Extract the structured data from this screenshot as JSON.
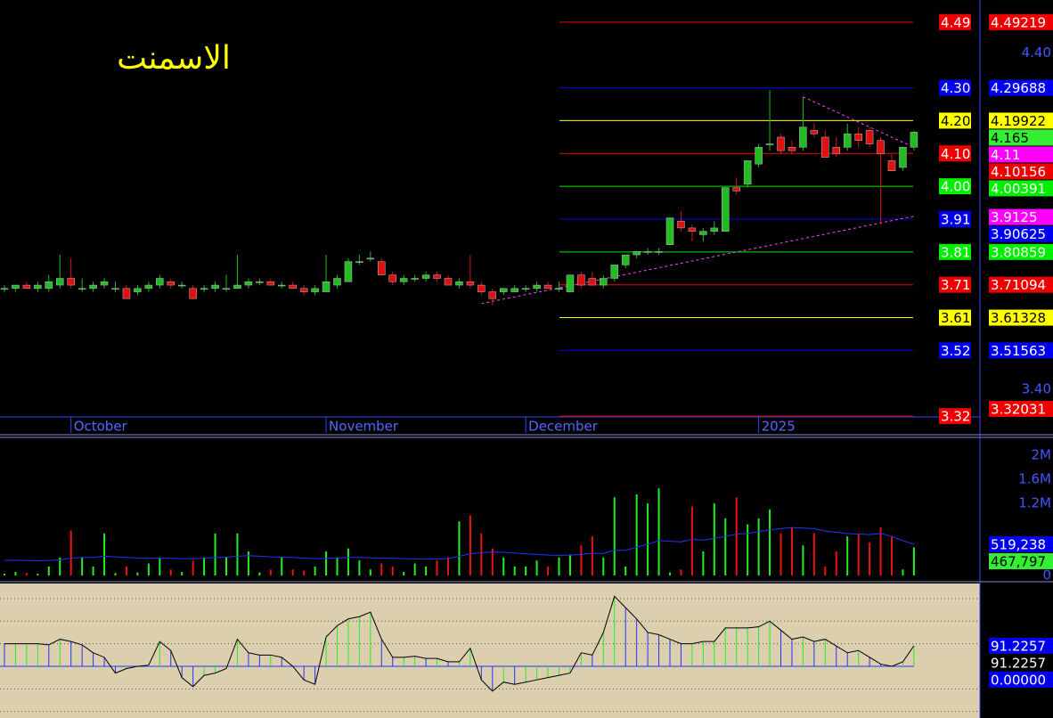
{
  "chart_data": [
    {
      "type": "candlestick",
      "title": "الاسمنت",
      "title_color": "#ffff00",
      "categories": [
        null,
        null,
        null,
        null,
        null,
        null,
        "October",
        null,
        null,
        null,
        null,
        null,
        null,
        null,
        null,
        null,
        null,
        null,
        null,
        null,
        null,
        null,
        null,
        null,
        null,
        null,
        null,
        null,
        null,
        "November",
        null,
        null,
        null,
        null,
        null,
        null,
        null,
        null,
        null,
        null,
        null,
        null,
        null,
        null,
        null,
        null,
        null,
        "December",
        null,
        null,
        null,
        null,
        null,
        null,
        null,
        null,
        null,
        null,
        null,
        null,
        null,
        null,
        null,
        null,
        null,
        null,
        null,
        null,
        "2025",
        null,
        null,
        null,
        null,
        null,
        null,
        null,
        null,
        null,
        null,
        null,
        null,
        null,
        null
      ],
      "open": [
        3.7,
        3.7,
        3.71,
        3.7,
        3.7,
        3.71,
        3.73,
        3.7,
        3.7,
        3.71,
        3.7,
        3.7,
        3.69,
        3.7,
        3.71,
        3.72,
        3.71,
        3.7,
        3.7,
        3.7,
        3.7,
        3.7,
        3.71,
        3.72,
        3.72,
        3.71,
        3.71,
        3.7,
        3.69,
        3.69,
        3.71,
        3.72,
        3.78,
        3.79,
        3.78,
        3.74,
        3.72,
        3.73,
        3.73,
        3.74,
        3.73,
        3.71,
        3.72,
        3.71,
        3.69,
        3.69,
        3.69,
        3.7,
        3.7,
        3.71,
        3.7,
        3.69,
        3.74,
        3.73,
        3.71,
        3.73,
        3.77,
        3.8,
        3.81,
        3.81,
        3.83,
        3.9,
        3.88,
        3.86,
        3.87,
        3.87,
        4.0,
        4.01,
        4.07,
        4.13,
        4.15,
        4.12,
        4.12,
        4.17,
        4.15,
        4.12,
        4.12,
        4.16,
        4.17,
        4.14,
        4.08,
        4.06,
        4.12
      ],
      "high": [
        3.71,
        3.71,
        3.72,
        3.72,
        3.74,
        3.8,
        3.79,
        3.73,
        3.72,
        3.73,
        3.72,
        3.71,
        3.71,
        3.72,
        3.74,
        3.73,
        3.72,
        3.71,
        3.71,
        3.72,
        3.74,
        3.8,
        3.73,
        3.73,
        3.73,
        3.72,
        3.72,
        3.71,
        3.71,
        3.8,
        3.74,
        3.79,
        3.8,
        3.81,
        3.79,
        3.75,
        3.74,
        3.74,
        3.75,
        3.75,
        3.74,
        3.73,
        3.8,
        3.72,
        3.7,
        3.7,
        3.71,
        3.71,
        3.72,
        3.72,
        3.72,
        3.74,
        3.75,
        3.75,
        3.74,
        3.77,
        3.8,
        3.81,
        3.82,
        3.82,
        3.91,
        3.93,
        3.89,
        3.88,
        3.9,
        4.0,
        4.03,
        4.08,
        4.13,
        4.29,
        4.16,
        4.14,
        4.27,
        4.19,
        4.17,
        4.15,
        4.19,
        4.18,
        4.18,
        4.15,
        4.1,
        4.12,
        4.17
      ],
      "low": [
        3.69,
        3.69,
        3.7,
        3.69,
        3.69,
        3.7,
        3.7,
        3.69,
        3.69,
        3.7,
        3.69,
        3.67,
        3.68,
        3.69,
        3.7,
        3.7,
        3.7,
        3.67,
        3.69,
        3.69,
        3.69,
        3.7,
        3.7,
        3.71,
        3.71,
        3.7,
        3.7,
        3.68,
        3.68,
        3.69,
        3.7,
        3.72,
        3.77,
        3.78,
        3.74,
        3.71,
        3.71,
        3.72,
        3.72,
        3.72,
        3.71,
        3.7,
        3.7,
        3.68,
        3.65,
        3.68,
        3.69,
        3.69,
        3.69,
        3.7,
        3.69,
        3.69,
        3.7,
        3.71,
        3.7,
        3.72,
        3.76,
        3.79,
        3.8,
        3.8,
        3.83,
        3.87,
        3.84,
        3.84,
        3.86,
        3.87,
        3.98,
        4.0,
        4.06,
        4.11,
        4.1,
        4.1,
        4.11,
        4.15,
        4.09,
        4.09,
        4.11,
        4.12,
        4.12,
        3.89,
        4.05,
        4.05,
        4.11
      ],
      "close": [
        3.7,
        3.71,
        3.7,
        3.71,
        3.72,
        3.73,
        3.71,
        3.7,
        3.71,
        3.72,
        3.7,
        3.67,
        3.7,
        3.71,
        3.73,
        3.71,
        3.71,
        3.67,
        3.7,
        3.71,
        3.7,
        3.71,
        3.72,
        3.72,
        3.71,
        3.71,
        3.7,
        3.69,
        3.7,
        3.72,
        3.73,
        3.78,
        3.78,
        3.79,
        3.74,
        3.72,
        3.73,
        3.73,
        3.74,
        3.73,
        3.71,
        3.72,
        3.71,
        3.69,
        3.67,
        3.7,
        3.7,
        3.7,
        3.71,
        3.7,
        3.7,
        3.74,
        3.71,
        3.71,
        3.73,
        3.77,
        3.8,
        3.81,
        3.81,
        3.81,
        3.91,
        3.88,
        3.87,
        3.87,
        3.88,
        4.0,
        3.99,
        4.08,
        4.12,
        4.13,
        4.11,
        4.11,
        4.18,
        4.16,
        4.09,
        4.1,
        4.16,
        4.14,
        4.13,
        4.1,
        4.05,
        4.12,
        4.165
      ],
      "up_color": "#22bb22",
      "down_color": "#dd1111",
      "ylim": [
        3.318,
        4.558
      ],
      "yticks": [
        {
          "value": 4.4,
          "label": "4.40"
        },
        {
          "value": 3.4,
          "label": "3.40"
        }
      ],
      "levels": [
        {
          "value": 4.49219,
          "label": "4.49",
          "color": "#ee0000"
        },
        {
          "value": 4.29688,
          "label": "4.30",
          "color": "#0000ee"
        },
        {
          "value": 4.19922,
          "label": "4.20",
          "color": "#ffff00"
        },
        {
          "value": 4.10156,
          "label": "4.10",
          "color": "#ee0000"
        },
        {
          "value": 4.00391,
          "label": "4.00",
          "color": "#00ee00"
        },
        {
          "value": 3.90625,
          "label": "3.91",
          "color": "#0000ee"
        },
        {
          "value": 3.80859,
          "label": "3.81",
          "color": "#00ee00"
        },
        {
          "value": 3.71094,
          "label": "3.71",
          "color": "#ee0000"
        },
        {
          "value": 3.61328,
          "label": "3.61",
          "color": "#ffff00"
        },
        {
          "value": 3.51563,
          "label": "3.52",
          "color": "#0000ee"
        },
        {
          "value": 3.32031,
          "label": "3.32",
          "color": "#ee0000"
        }
      ],
      "markers": [
        {
          "value": 4.165,
          "color": "#33ee33"
        },
        {
          "value": 4.11,
          "color": "#ff00ff"
        },
        {
          "value": 3.9125,
          "color": "#ff00ff"
        }
      ],
      "trendlines": [
        {
          "from": [
            43,
            3.655
          ],
          "to": [
            82,
            3.915
          ]
        },
        {
          "from": [
            72,
            4.27
          ],
          "to": [
            82,
            4.12
          ]
        }
      ],
      "trend_color": "#ff44ff"
    },
    {
      "type": "bar",
      "values": [
        30000,
        60000,
        40000,
        30000,
        150000,
        300000,
        750000,
        300000,
        150000,
        700000,
        40000,
        150000,
        50000,
        200000,
        300000,
        100000,
        60000,
        250000,
        300000,
        700000,
        300000,
        700000,
        400000,
        50000,
        100000,
        300000,
        100000,
        80000,
        150000,
        400000,
        300000,
        450000,
        250000,
        100000,
        200000,
        150000,
        60000,
        200000,
        150000,
        250000,
        300000,
        900000,
        1000000,
        700000,
        450000,
        300000,
        150000,
        150000,
        250000,
        150000,
        300000,
        350000,
        500000,
        650000,
        300000,
        1300000,
        150000,
        1350000,
        1200000,
        1450000,
        50000,
        100000,
        1150000,
        400000,
        1200000,
        950000,
        1300000,
        850000,
        950000,
        1100000,
        700000,
        800000,
        500000,
        700000,
        150000,
        400000,
        650000,
        700000,
        550000,
        800000,
        650000,
        100000,
        467797
      ],
      "up_color": "#22ee22",
      "down_color": "#ee1111",
      "average": {
        "color": "#2233ff",
        "values": [
          250000,
          255000,
          250000,
          245000,
          250000,
          260000,
          290000,
          300000,
          300000,
          320000,
          310000,
          300000,
          290000,
          285000,
          290000,
          285000,
          280000,
          280000,
          285000,
          300000,
          305000,
          320000,
          330000,
          320000,
          310000,
          305000,
          300000,
          290000,
          280000,
          285000,
          290000,
          300000,
          300000,
          295000,
          290000,
          285000,
          280000,
          275000,
          270000,
          275000,
          280000,
          320000,
          360000,
          380000,
          390000,
          385000,
          375000,
          360000,
          350000,
          340000,
          335000,
          340000,
          350000,
          370000,
          365000,
          420000,
          420000,
          470000,
          520000,
          580000,
          570000,
          560000,
          600000,
          590000,
          620000,
          650000,
          690000,
          700000,
          730000,
          760000,
          780000,
          800000,
          790000,
          780000,
          740000,
          720000,
          700000,
          690000,
          680000,
          700000,
          650000,
          580000,
          519238
        ]
      },
      "ylim": [
        0,
        2270000
      ],
      "yticks": [
        {
          "value": 2000000,
          "label": "2M"
        },
        {
          "value": 1600000,
          "label": "1.6M"
        },
        {
          "value": 1200000,
          "label": "1.2M"
        },
        0
      ],
      "markers": [
        {
          "value": 519238,
          "label": "519,238",
          "color": "#0000ee"
        },
        {
          "value": 467797,
          "label": "467,797",
          "color": "#33ee33"
        }
      ]
    },
    {
      "type": "line",
      "values": [
        100,
        100,
        100,
        100,
        95,
        120,
        110,
        95,
        60,
        40,
        -30,
        -10,
        0,
        5,
        110,
        70,
        -50,
        -90,
        -40,
        -30,
        -10,
        120,
        60,
        50,
        50,
        40,
        0,
        -60,
        -80,
        130,
        180,
        210,
        220,
        240,
        120,
        40,
        40,
        45,
        35,
        35,
        20,
        20,
        80,
        -60,
        -110,
        -70,
        -80,
        -70,
        -60,
        -50,
        -40,
        -30,
        60,
        50,
        150,
        310,
        260,
        210,
        150,
        140,
        120,
        100,
        100,
        110,
        110,
        170,
        170,
        170,
        175,
        200,
        160,
        120,
        130,
        110,
        120,
        90,
        60,
        70,
        40,
        10,
        0,
        20,
        91.2257
      ],
      "color": "#000000",
      "up_color": "#22ee22",
      "down_color": "#2233ff",
      "background": "#dccfae",
      "ylim": [
        -229,
        367
      ],
      "yticks": [
        300,
        200,
        100,
        -100,
        -200
      ],
      "markers": [
        {
          "value": 91.2257,
          "color": "#0000ee"
        },
        {
          "value": 91.2257,
          "color": "#000000"
        },
        {
          "value": 0,
          "label": "0.00000",
          "color": "#0000ee"
        }
      ]
    }
  ]
}
